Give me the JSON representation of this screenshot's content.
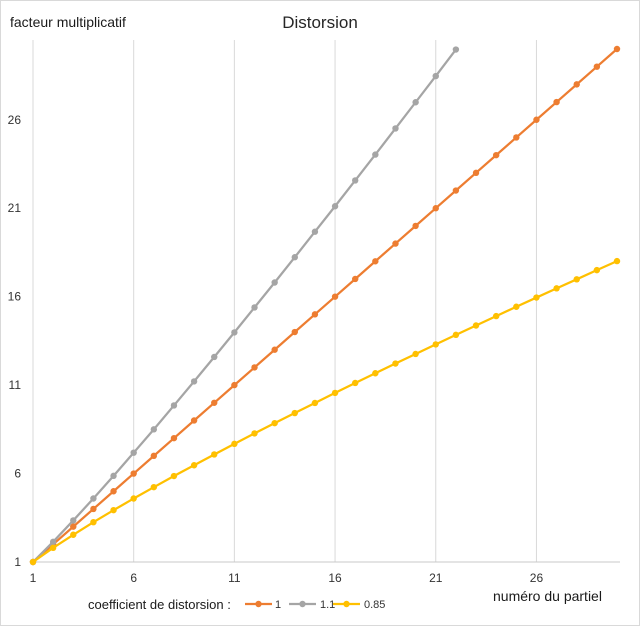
{
  "chart_data": {
    "type": "line",
    "title": "Distorsion",
    "ylabel": "facteur multiplicatif",
    "xlabel": "numéro du partiel",
    "xticks": [
      1,
      6,
      11,
      16,
      21,
      26
    ],
    "yticks": [
      1,
      6,
      11,
      16,
      21,
      26
    ],
    "xlim": [
      1,
      30
    ],
    "ylim": [
      1,
      30
    ],
    "grid": "vertical",
    "legend_position": "bottom-left",
    "legend_title": "coefficient de distorsion :",
    "series": [
      {
        "name": "1",
        "color": "#ED7D31",
        "x": [
          1,
          2,
          3,
          4,
          5,
          6,
          7,
          8,
          9,
          10,
          11,
          12,
          13,
          14,
          15,
          16,
          17,
          18,
          19,
          20,
          21,
          22,
          23,
          24,
          25,
          26,
          27,
          28,
          29,
          30
        ],
        "y": [
          1,
          2,
          3,
          4,
          5,
          6,
          7,
          8,
          9,
          10,
          11,
          12,
          13,
          14,
          15,
          16,
          17,
          18,
          19,
          20,
          21,
          22,
          23,
          24,
          25,
          26,
          27,
          28,
          29,
          30
        ]
      },
      {
        "name": "1.1",
        "color": "#A5A5A5",
        "x": [
          1,
          2,
          3,
          4,
          5,
          6,
          7,
          8,
          9,
          10,
          11,
          12,
          13,
          14,
          15,
          16,
          17,
          18,
          19,
          20,
          21,
          22
        ],
        "y": [
          1,
          2.14,
          3.35,
          4.59,
          5.87,
          7.18,
          8.5,
          9.85,
          11.21,
          12.59,
          13.98,
          15.39,
          16.8,
          18.23,
          19.67,
          21.11,
          22.57,
          24.03,
          25.51,
          26.99,
          28.47,
          29.97
        ]
      },
      {
        "name": "0.85",
        "color": "#FFC000",
        "x": [
          1,
          2,
          3,
          4,
          5,
          6,
          7,
          8,
          9,
          10,
          11,
          12,
          13,
          14,
          15,
          16,
          17,
          18,
          19,
          20,
          21,
          22,
          23,
          24,
          25,
          26,
          27,
          28,
          29,
          30
        ],
        "y": [
          1,
          1.8,
          2.54,
          3.25,
          3.93,
          4.59,
          5.23,
          5.86,
          6.47,
          7.08,
          7.68,
          8.27,
          8.85,
          9.42,
          9.99,
          10.56,
          11.12,
          11.67,
          12.22,
          12.76,
          13.3,
          13.84,
          14.37,
          14.9,
          15.43,
          15.95,
          16.47,
          16.98,
          17.5,
          18.01
        ]
      }
    ]
  }
}
